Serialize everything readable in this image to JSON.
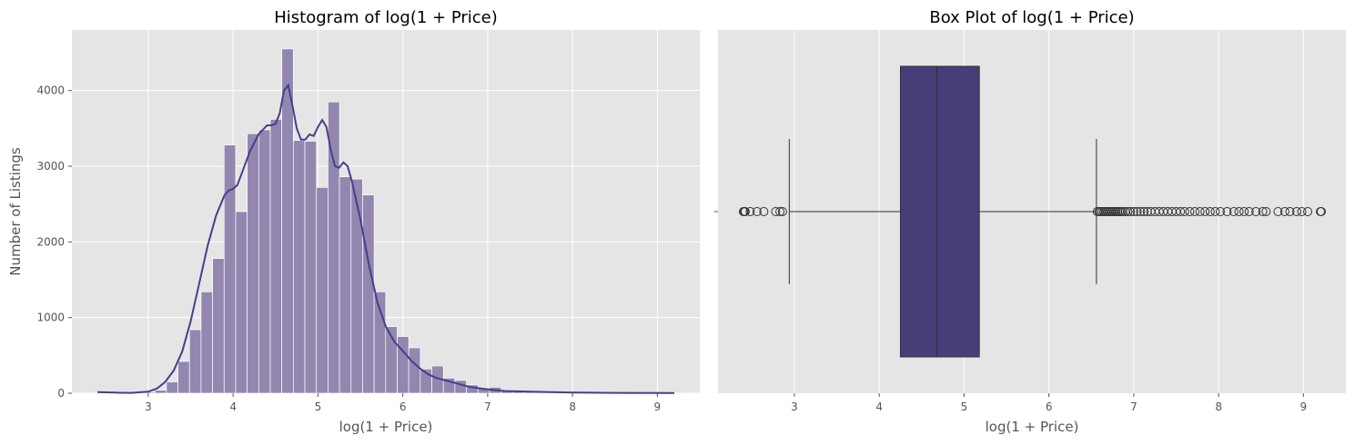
{
  "chart_data": [
    {
      "type": "bar",
      "subtype": "histogram",
      "title": "Histogram of log(1 + Price)",
      "xlabel": "log(1 + Price)",
      "ylabel": "Number of Listings",
      "xlim": [
        2.1,
        9.5
      ],
      "ylim": [
        0,
        4800
      ],
      "xticks": [
        3,
        4,
        5,
        6,
        7,
        8,
        9
      ],
      "yticks": [
        0,
        1000,
        2000,
        3000,
        4000
      ],
      "grid": true,
      "bin_edges": [
        2.398,
        2.534,
        2.67,
        2.806,
        2.942,
        3.078,
        3.214,
        3.35,
        3.486,
        3.622,
        3.758,
        3.894,
        4.03,
        4.166,
        4.302,
        4.438,
        4.574,
        4.71,
        4.846,
        4.982,
        5.118,
        5.254,
        5.39,
        5.526,
        5.662,
        5.798,
        5.934,
        6.07,
        6.206,
        6.342,
        6.478,
        6.614,
        6.75,
        6.886,
        7.022,
        7.158,
        7.294,
        7.43,
        7.566,
        7.702,
        7.838,
        7.974,
        8.11,
        8.246,
        8.382,
        8.518,
        8.654,
        8.79,
        8.926,
        9.062,
        9.198
      ],
      "counts": [
        20,
        10,
        5,
        5,
        15,
        40,
        150,
        420,
        840,
        1340,
        1780,
        3280,
        2400,
        3430,
        3480,
        3620,
        4550,
        3340,
        3330,
        2720,
        3850,
        2860,
        2830,
        2620,
        1340,
        880,
        750,
        600,
        320,
        360,
        200,
        170,
        110,
        70,
        80,
        40,
        30,
        25,
        20,
        15,
        10,
        10,
        8,
        6,
        5,
        4,
        3,
        3,
        2,
        8
      ],
      "kde_x": [
        2.4,
        2.6,
        2.8,
        3.0,
        3.1,
        3.2,
        3.3,
        3.4,
        3.5,
        3.6,
        3.7,
        3.8,
        3.9,
        3.95,
        4.0,
        4.05,
        4.1,
        4.2,
        4.3,
        4.4,
        4.45,
        4.5,
        4.55,
        4.6,
        4.65,
        4.7,
        4.75,
        4.8,
        4.85,
        4.9,
        4.95,
        5.0,
        5.05,
        5.1,
        5.15,
        5.2,
        5.25,
        5.3,
        5.35,
        5.4,
        5.5,
        5.6,
        5.7,
        5.8,
        5.9,
        6.0,
        6.1,
        6.2,
        6.3,
        6.4,
        6.5,
        6.6,
        6.7,
        6.8,
        7.0,
        7.2,
        7.5,
        8.0,
        8.5,
        9.2
      ],
      "kde_y": [
        15,
        8,
        5,
        20,
        60,
        150,
        300,
        550,
        950,
        1450,
        1950,
        2350,
        2620,
        2680,
        2700,
        2750,
        2900,
        3200,
        3420,
        3540,
        3540,
        3560,
        3700,
        4000,
        4070,
        3800,
        3500,
        3350,
        3350,
        3420,
        3400,
        3520,
        3610,
        3520,
        3220,
        3000,
        2980,
        3050,
        3000,
        2800,
        2300,
        1700,
        1200,
        880,
        680,
        560,
        430,
        330,
        250,
        200,
        170,
        140,
        110,
        80,
        50,
        30,
        20,
        10,
        5,
        2
      ],
      "color": "#483d8b",
      "bar_color": "#9387b0"
    },
    {
      "type": "box",
      "title": "Box Plot of log(1 + Price)",
      "xlabel": "log(1 + Price)",
      "xlim": [
        2.1,
        9.5
      ],
      "xticks": [
        3,
        4,
        5,
        6,
        7,
        8,
        9
      ],
      "grid": true,
      "whisker_low": 2.94,
      "q1": 4.25,
      "median": 4.68,
      "q3": 5.18,
      "whisker_high": 6.56,
      "outliers": [
        2.4,
        2.41,
        2.42,
        2.48,
        2.56,
        2.64,
        2.78,
        2.83,
        2.86,
        6.57,
        6.59,
        6.61,
        6.63,
        6.65,
        6.67,
        6.69,
        6.71,
        6.73,
        6.75,
        6.77,
        6.79,
        6.81,
        6.83,
        6.85,
        6.87,
        6.9,
        6.93,
        6.96,
        7.0,
        7.04,
        7.08,
        7.12,
        7.16,
        7.2,
        7.25,
        7.3,
        7.35,
        7.4,
        7.45,
        7.5,
        7.55,
        7.6,
        7.66,
        7.72,
        7.78,
        7.84,
        7.9,
        7.96,
        8.02,
        8.1,
        8.18,
        8.24,
        8.3,
        8.36,
        8.44,
        8.52,
        8.56,
        8.7,
        8.78,
        8.84,
        8.92,
        8.98,
        9.05,
        9.2,
        9.21
      ],
      "color": "#483d78"
    }
  ]
}
